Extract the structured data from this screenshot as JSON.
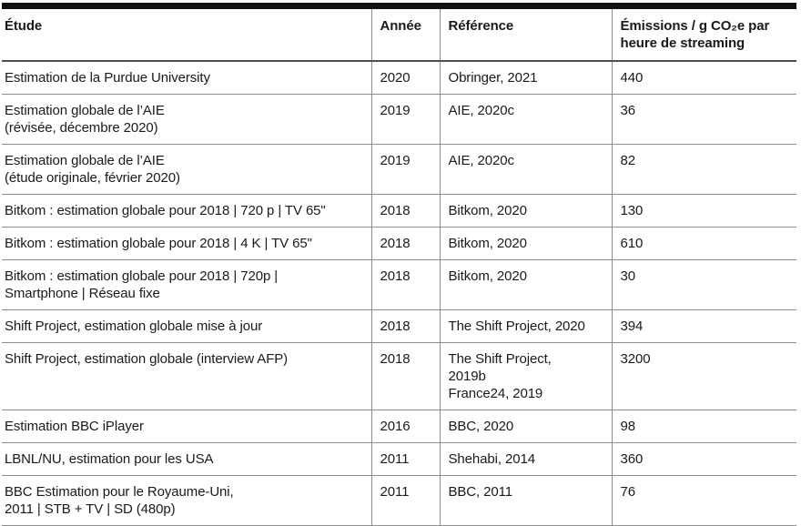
{
  "table": {
    "columns": [
      {
        "label": "Étude"
      },
      {
        "label": "Année"
      },
      {
        "label": "Référence"
      },
      {
        "label": "Émissions / g CO₂e par\nheure de streaming"
      }
    ],
    "rows": [
      {
        "etude": "Estimation de la Purdue University",
        "annee": "2020",
        "reference": "Obringer, 2021",
        "emissions": "440"
      },
      {
        "etude": "Estimation globale de l’AIE\n(révisée, décembre 2020)",
        "annee": "2019",
        "reference": "AIE, 2020c",
        "emissions": "36"
      },
      {
        "etude": "Estimation globale de l’AIE\n(étude originale, février 2020)",
        "annee": "2019",
        "reference": "AIE, 2020c",
        "emissions": "82"
      },
      {
        "etude": "Bitkom : estimation globale pour 2018 | 720 p | TV 65\"",
        "annee": "2018",
        "reference": "Bitkom, 2020",
        "emissions": "130"
      },
      {
        "etude": "Bitkom : estimation globale pour 2018 | 4 K | TV 65\"",
        "annee": "2018",
        "reference": "Bitkom, 2020",
        "emissions": "610"
      },
      {
        "etude": "Bitkom : estimation globale pour 2018 | 720p |\nSmartphone | Réseau fixe",
        "annee": "2018",
        "reference": "Bitkom, 2020",
        "emissions": "30"
      },
      {
        "etude": "Shift Project, estimation globale mise à jour",
        "annee": "2018",
        "reference": "The Shift Project, 2020",
        "emissions": "394"
      },
      {
        "etude": "Shift Project, estimation globale (interview AFP)",
        "annee": "2018",
        "reference": "The Shift Project,\n2019b\nFrance24, 2019",
        "emissions": "3200"
      },
      {
        "etude": "Estimation BBC iPlayer",
        "annee": "2016",
        "reference": "BBC, 2020",
        "emissions": "98"
      },
      {
        "etude": "LBNL/NU, estimation pour les USA",
        "annee": "2011",
        "reference": "Shehabi, 2014",
        "emissions": "360"
      },
      {
        "etude": "BBC Estimation pour le Royaume-Uni,\n2011 | STB + TV | SD (480p)",
        "annee": "2011",
        "reference": "BBC, 2011",
        "emissions": "76"
      }
    ]
  }
}
